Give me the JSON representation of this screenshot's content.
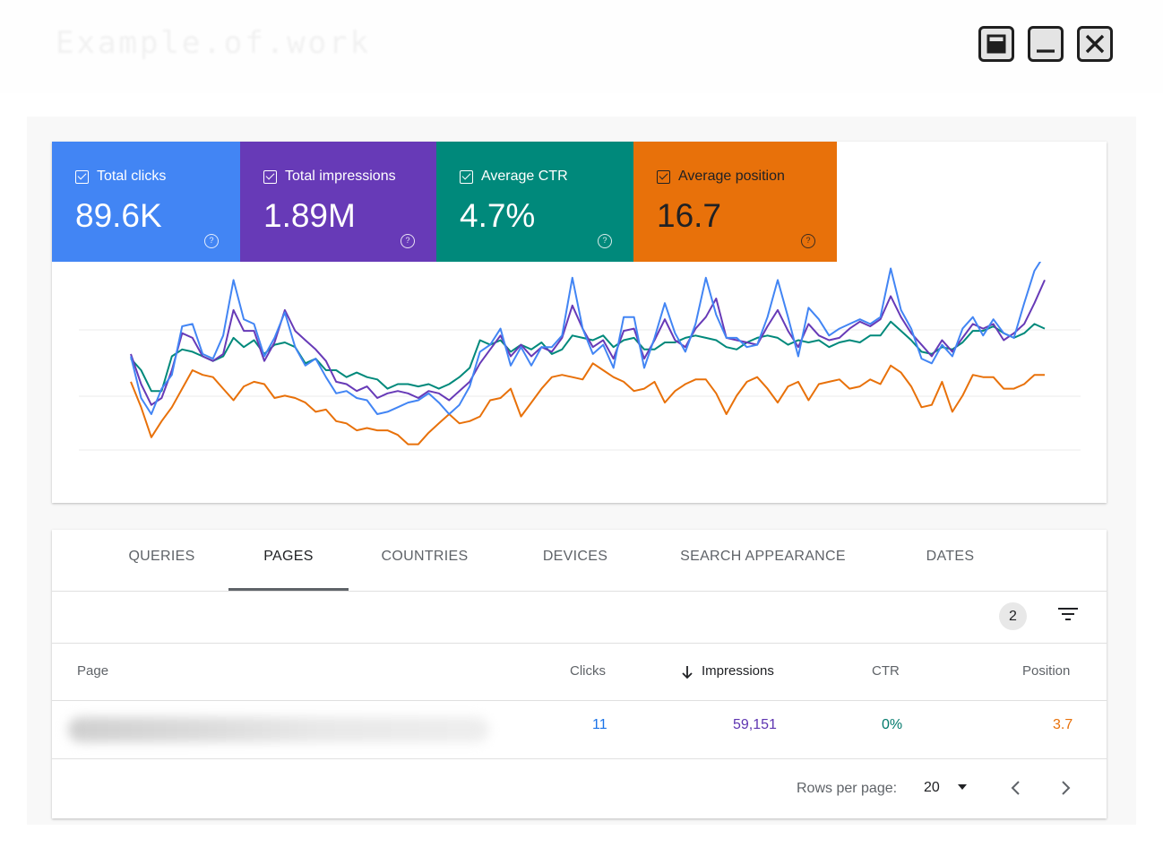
{
  "window": {
    "title": "Example.of.work",
    "controls": [
      "maximize-icon",
      "minimize-icon",
      "close-icon"
    ]
  },
  "metrics": [
    {
      "label": "Total clicks",
      "value": "89.6K",
      "color": "#4285f4",
      "text_color": "#ffffff",
      "checked": true
    },
    {
      "label": "Total impressions",
      "value": "1.89M",
      "color": "#673ab7",
      "text_color": "#ffffff",
      "checked": true
    },
    {
      "label": "Average CTR",
      "value": "4.7%",
      "color": "#00897b",
      "text_color": "#ffffff",
      "checked": true
    },
    {
      "label": "Average position",
      "value": "16.7",
      "color": "#e8710a",
      "text_color": "#202124",
      "checked": true
    }
  ],
  "chart_data": {
    "type": "line",
    "title": "",
    "xlabel": "",
    "ylabel": "",
    "x": [
      1,
      2,
      3,
      4,
      5,
      6,
      7,
      8,
      9,
      10,
      11,
      12,
      13,
      14,
      15,
      16,
      17,
      18,
      19,
      20,
      21,
      22,
      23,
      24,
      25,
      26,
      27,
      28,
      29,
      30,
      31,
      32,
      33,
      34,
      35,
      36,
      37,
      38,
      39,
      40,
      41,
      42,
      43,
      44,
      45,
      46,
      47,
      48,
      49,
      50,
      51,
      52,
      53,
      54,
      55,
      56,
      57,
      58,
      59,
      60,
      61,
      62,
      63,
      64,
      65,
      66,
      67,
      68,
      69,
      70,
      71,
      72,
      73,
      74,
      75,
      76,
      77,
      78,
      79,
      80,
      81,
      82,
      83,
      84,
      85,
      86,
      87,
      88,
      89,
      90
    ],
    "ylim": [
      0,
      100
    ],
    "grid": true,
    "series": [
      {
        "name": "Total clicks",
        "color": "#4285f4",
        "values": [
          56,
          38,
          31,
          42,
          48,
          69,
          70,
          57,
          55,
          65,
          89,
          72,
          70,
          56,
          64,
          75,
          60,
          52,
          55,
          47,
          40,
          41,
          38,
          37,
          31,
          32,
          34,
          36,
          37,
          40,
          36,
          31,
          35,
          43,
          58,
          61,
          68,
          52,
          60,
          52,
          60,
          60,
          65,
          90,
          68,
          57,
          61,
          51,
          73,
          73,
          51,
          64,
          79,
          66,
          58,
          70,
          90,
          74,
          64,
          64,
          60,
          61,
          73,
          89,
          73,
          56,
          77,
          72,
          65,
          68,
          70,
          72,
          70,
          73,
          94,
          76,
          68,
          55,
          53,
          61,
          56,
          68,
          73,
          65,
          72,
          66,
          64,
          79,
          93,
          100
        ]
      },
      {
        "name": "Total impressions",
        "color": "#673ab7",
        "values": [
          57,
          44,
          35,
          38,
          50,
          66,
          64,
          56,
          54,
          57,
          76,
          67,
          67,
          54,
          62,
          76,
          67,
          63,
          59,
          54,
          45,
          44,
          41,
          43,
          38,
          40,
          41,
          40,
          38,
          41,
          40,
          37,
          41,
          45,
          53,
          59,
          65,
          56,
          61,
          56,
          60,
          58,
          64,
          78,
          68,
          60,
          63,
          55,
          67,
          68,
          55,
          63,
          72,
          63,
          60,
          68,
          73,
          81,
          64,
          63,
          62,
          61,
          69,
          76,
          67,
          60,
          70,
          65,
          63,
          64,
          68,
          71,
          69,
          72,
          82,
          73,
          66,
          61,
          56,
          63,
          58,
          64,
          70,
          68,
          70,
          63,
          66,
          70,
          79,
          89
        ]
      },
      {
        "name": "Average CTR",
        "color": "#00897b",
        "values": [
          55,
          50,
          41,
          41,
          56,
          59,
          58,
          56,
          54,
          56,
          64,
          60,
          63,
          57,
          61,
          62,
          60,
          53,
          55,
          50,
          50,
          47,
          49,
          47,
          46,
          42,
          44,
          44,
          43,
          44,
          42,
          44,
          47,
          51,
          63,
          61,
          63,
          58,
          61,
          59,
          62,
          57,
          59,
          65,
          64,
          63,
          65,
          60,
          63,
          64,
          59,
          59,
          62,
          62,
          64,
          65,
          64,
          63,
          60,
          59,
          62,
          64,
          65,
          64,
          61,
          63,
          62,
          63,
          60,
          62,
          63,
          62,
          65,
          65,
          71,
          67,
          63,
          58,
          57,
          60,
          59,
          62,
          67,
          67,
          69,
          66,
          64,
          66,
          70,
          68
        ]
      },
      {
        "name": "Average position",
        "color": "#e8710a",
        "values": [
          45,
          34,
          21,
          28,
          34,
          42,
          50,
          48,
          47,
          42,
          37,
          43,
          45,
          44,
          38,
          39,
          38,
          36,
          32,
          33,
          28,
          27,
          24,
          25,
          24,
          24,
          22,
          18,
          18,
          23,
          27,
          31,
          27,
          28,
          30,
          37,
          38,
          42,
          30,
          36,
          42,
          47,
          48,
          47,
          46,
          53,
          50,
          47,
          45,
          41,
          42,
          45,
          36,
          41,
          44,
          46,
          46,
          40,
          31,
          39,
          45,
          47,
          42,
          36,
          43,
          45,
          37,
          44,
          45,
          46,
          42,
          43,
          46,
          44,
          52,
          49,
          43,
          34,
          35,
          45,
          32,
          39,
          48,
          47,
          47,
          42,
          42,
          44,
          48,
          48
        ]
      }
    ]
  },
  "tabs": [
    "QUERIES",
    "PAGES",
    "COUNTRIES",
    "DEVICES",
    "SEARCH APPEARANCE",
    "DATES"
  ],
  "active_tab": "PAGES",
  "filter": {
    "count": "2",
    "icon": "filter-icon"
  },
  "table": {
    "headers": {
      "page": "Page",
      "clicks": "Clicks",
      "impressions": "Impressions",
      "ctr": "CTR",
      "position": "Position"
    },
    "sort": {
      "column": "impressions",
      "icon": "arrow-down-icon"
    },
    "rows": [
      {
        "clicks": "11",
        "impressions": "59,151",
        "ctr": "0%",
        "position": "3.7"
      }
    ]
  },
  "pagination": {
    "rows_per_page_label": "Rows per page:",
    "rows_per_page_value": "20",
    "prev_icon": "chevron-left-icon",
    "next_icon": "chevron-right-icon"
  }
}
